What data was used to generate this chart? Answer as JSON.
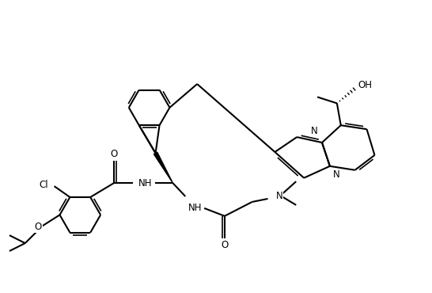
{
  "figsize": [
    5.46,
    3.7
  ],
  "dpi": 100,
  "xlim": [
    0,
    546
  ],
  "ylim": [
    0,
    370
  ],
  "bg": "#ffffff"
}
